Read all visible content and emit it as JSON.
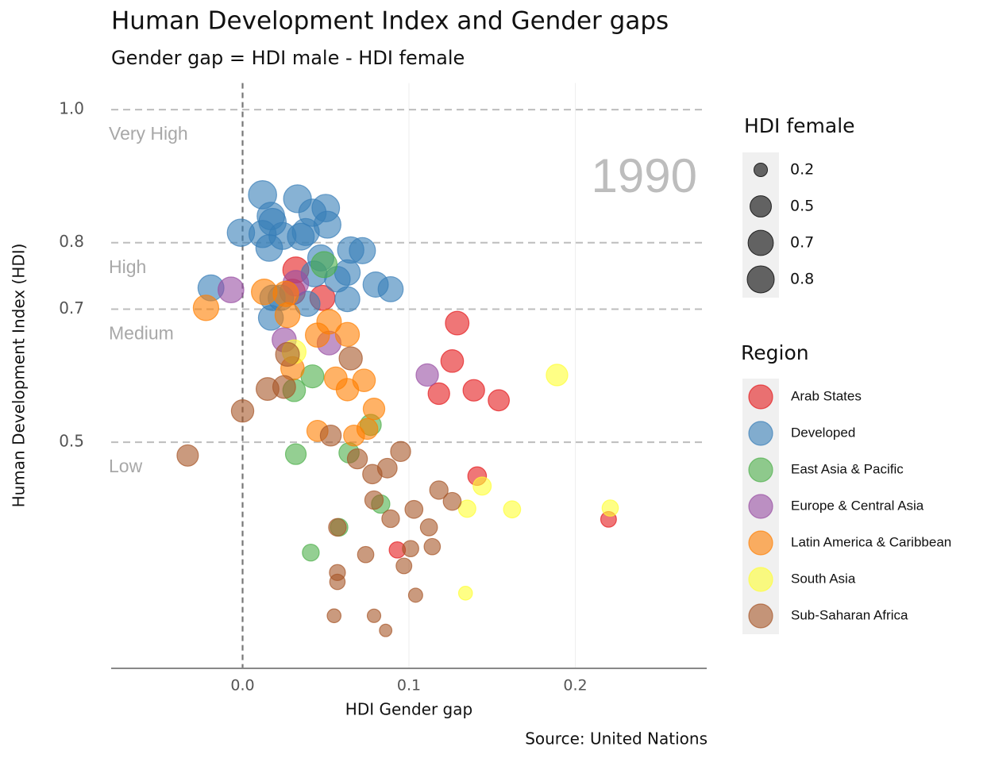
{
  "chart_data": {
    "type": "bubble",
    "title": "Human Development Index and Gender gaps",
    "subtitle": "Gender gap =  HDI male - HDI female",
    "x_label": "HDI Gender gap",
    "y_label": "Human Development Index (HDI)",
    "source": "Source: United Nations",
    "year_label": "1990",
    "band_labels": [
      "Low",
      "Medium",
      "High",
      "Very High"
    ],
    "xlim": [
      -0.079,
      0.279
    ],
    "ylim": [
      0.16,
      1.04
    ],
    "xticks": [
      {
        "value": 0,
        "label": "0.0"
      },
      0.1,
      0.2
    ],
    "yticks": [
      0.5,
      0.7,
      0.8,
      {
        "value": 1.0,
        "label": "1.0"
      }
    ],
    "zero_line": true,
    "size_title": "HDI female",
    "size_legend": [
      0.2,
      0.5,
      0.7,
      0.8
    ],
    "color_title": "Region",
    "series": [
      {
        "name": "Arab States",
        "color": "#e41a1c",
        "x": [
          0.032,
          0.03,
          0.048,
          0.129,
          0.126,
          0.118,
          0.139,
          0.154,
          0.141,
          0.22,
          0.093
        ],
        "y": [
          0.759,
          0.726,
          0.717,
          0.679,
          0.622,
          0.573,
          0.578,
          0.563,
          0.449,
          0.384,
          0.338
        ],
        "size": [
          0.74,
          0.71,
          0.69,
          0.61,
          0.56,
          0.51,
          0.51,
          0.49,
          0.38,
          0.27,
          0.29
        ]
      },
      {
        "name": "Developed",
        "color": "#377eb8",
        "x": [
          0.012,
          0.033,
          0.05,
          0.017,
          0.042,
          0.018,
          -0.001,
          0.012,
          0.038,
          0.051,
          0.024,
          0.035,
          0.016,
          0.065,
          0.072,
          0.047,
          0.063,
          0.057,
          -0.019,
          0.08,
          0.089,
          0.018,
          0.039,
          0.063,
          0.017,
          0.043,
          0.023
        ],
        "y": [
          0.872,
          0.866,
          0.852,
          0.84,
          0.845,
          0.831,
          0.815,
          0.813,
          0.816,
          0.827,
          0.81,
          0.809,
          0.792,
          0.789,
          0.788,
          0.777,
          0.755,
          0.745,
          0.732,
          0.737,
          0.73,
          0.717,
          0.708,
          0.715,
          0.687,
          0.753,
          0.717
        ],
        "size": [
          0.87,
          0.85,
          0.83,
          0.83,
          0.82,
          0.82,
          0.82,
          0.81,
          0.8,
          0.8,
          0.8,
          0.79,
          0.78,
          0.76,
          0.75,
          0.75,
          0.72,
          0.72,
          0.74,
          0.7,
          0.69,
          0.71,
          0.69,
          0.68,
          0.68,
          0.73,
          0.71
        ]
      },
      {
        "name": "East Asia & Pacific",
        "color": "#4daf4a",
        "x": [
          0.049,
          0.042,
          0.031,
          0.077,
          0.032,
          0.064,
          0.083,
          0.058,
          0.041
        ],
        "y": [
          0.767,
          0.599,
          0.578,
          0.526,
          0.482,
          0.484,
          0.407,
          0.372,
          0.334
        ],
        "size": [
          0.74,
          0.58,
          0.56,
          0.49,
          0.47,
          0.45,
          0.37,
          0.34,
          0.31
        ]
      },
      {
        "name": "Europe & Central Asia",
        "color": "#984ea3",
        "x": [
          -0.007,
          0.025,
          0.052,
          0.111,
          0.032
        ],
        "y": [
          0.729,
          0.654,
          0.649,
          0.601,
          0.739
        ],
        "size": [
          0.73,
          0.64,
          0.62,
          0.55,
          0.72
        ]
      },
      {
        "name": "Latin America & Caribbean",
        "color": "#ff7f00",
        "x": [
          -0.022,
          0.013,
          0.027,
          0.045,
          0.063,
          0.052,
          0.03,
          0.056,
          0.073,
          0.063,
          0.079,
          0.045,
          0.067,
          0.075,
          0.026
        ],
        "y": [
          0.702,
          0.726,
          0.691,
          0.661,
          0.662,
          0.681,
          0.611,
          0.596,
          0.593,
          0.579,
          0.55,
          0.517,
          0.51,
          0.52,
          0.723
        ],
        "size": [
          0.71,
          0.72,
          0.68,
          0.64,
          0.63,
          0.66,
          0.6,
          0.57,
          0.56,
          0.55,
          0.51,
          0.49,
          0.48,
          0.48,
          0.71
        ]
      },
      {
        "name": "South Asia",
        "color": "#ffff33",
        "x": [
          0.189,
          0.144,
          0.135,
          0.162,
          0.221,
          0.134,
          0.031
        ],
        "y": [
          0.601,
          0.434,
          0.4,
          0.399,
          0.401,
          0.273,
          0.636
        ],
        "size": [
          0.51,
          0.36,
          0.33,
          0.32,
          0.29,
          0.21,
          0.62
        ]
      },
      {
        "name": "Sub-Saharan Africa",
        "color": "#a65628",
        "x": [
          0.0,
          -0.033,
          0.015,
          0.025,
          0.027,
          0.065,
          0.053,
          0.069,
          0.078,
          0.087,
          0.095,
          0.118,
          0.126,
          0.079,
          0.103,
          0.089,
          0.112,
          0.057,
          0.101,
          0.114,
          0.074,
          0.097,
          0.057,
          0.057,
          0.104,
          0.055,
          0.079,
          0.086
        ],
        "y": [
          0.547,
          0.48,
          0.58,
          0.583,
          0.632,
          0.626,
          0.51,
          0.475,
          0.452,
          0.461,
          0.486,
          0.428,
          0.411,
          0.413,
          0.399,
          0.385,
          0.372,
          0.372,
          0.34,
          0.343,
          0.331,
          0.314,
          0.304,
          0.29,
          0.27,
          0.239,
          0.239,
          0.217
        ],
        "size": [
          0.55,
          0.5,
          0.57,
          0.57,
          0.62,
          0.59,
          0.48,
          0.44,
          0.41,
          0.42,
          0.44,
          0.37,
          0.35,
          0.37,
          0.35,
          0.34,
          0.32,
          0.34,
          0.29,
          0.29,
          0.29,
          0.27,
          0.28,
          0.26,
          0.22,
          0.21,
          0.2,
          0.17
        ]
      }
    ]
  }
}
